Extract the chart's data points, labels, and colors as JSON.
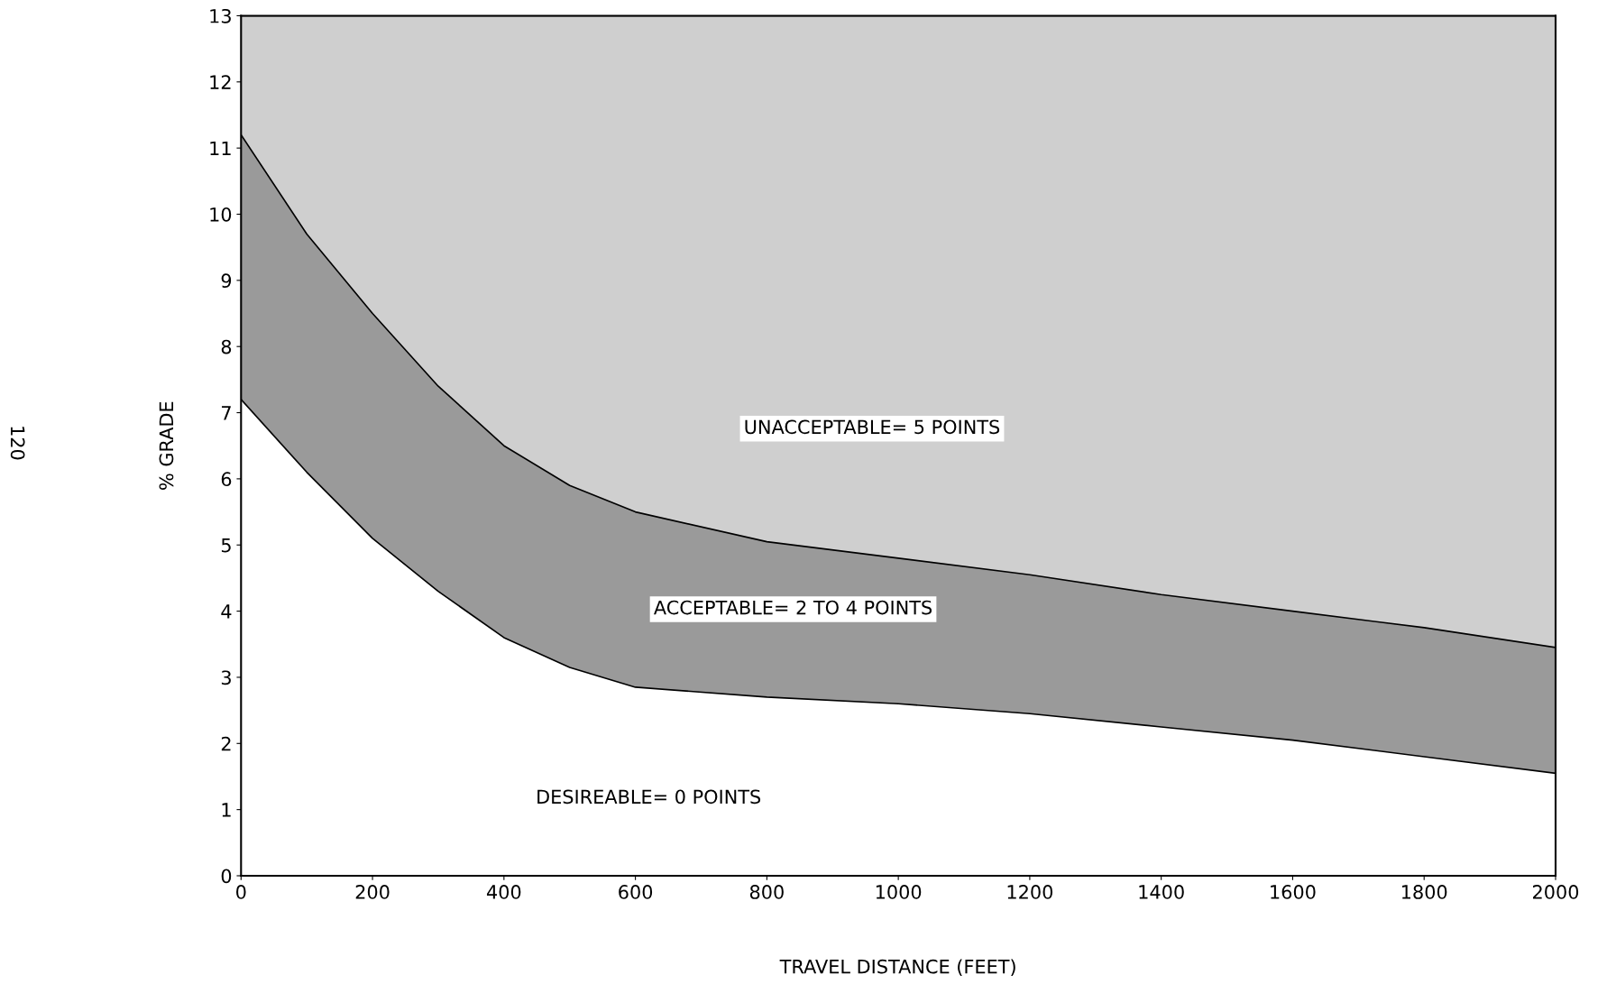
{
  "chart_data": {
    "type": "area",
    "xlabel": "TRAVEL DISTANCE (FEET)",
    "ylabel": "% GRADE",
    "x": [
      0,
      100,
      200,
      300,
      400,
      500,
      600,
      800,
      1000,
      1200,
      1400,
      1600,
      1800,
      2000
    ],
    "series": [
      {
        "color": "#ffffff",
        "values": [
          7.2,
          6.1,
          5.1,
          4.3,
          3.6,
          3.15,
          2.85,
          2.7,
          2.6,
          2.45,
          2.25,
          2.05,
          1.8,
          1.55
        ]
      },
      {
        "color": "#9a9a9a",
        "values": [
          11.2,
          9.7,
          8.5,
          7.4,
          6.5,
          5.9,
          5.5,
          5.05,
          4.8,
          4.55,
          4.25,
          4.0,
          3.75,
          3.45
        ]
      },
      {
        "color": "#cfcfcf",
        "values": [
          13,
          13,
          13,
          13,
          13,
          13,
          13,
          13,
          13,
          13,
          13,
          13,
          13,
          13
        ]
      }
    ],
    "xlim": [
      0,
      2000
    ],
    "xticks": [
      0,
      200,
      400,
      600,
      800,
      1000,
      1200,
      1400,
      1600,
      1800,
      2000
    ],
    "ylim": [
      0,
      13
    ],
    "yticks": [
      0,
      1,
      2,
      3,
      4,
      5,
      6,
      7,
      8,
      9,
      10,
      11,
      12,
      13
    ],
    "grid": false,
    "annotations": [
      "UNACCEPTABLE= 5 POINTS",
      "ACCEPTABLE= 2 TO 4 POINTS",
      "DESIREABLE= 0 POINTS",
      "120"
    ]
  }
}
